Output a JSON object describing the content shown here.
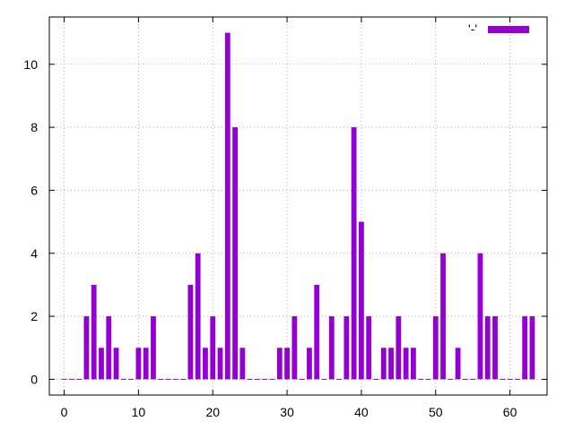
{
  "chart_data": {
    "type": "bar",
    "x": [
      0,
      1,
      2,
      3,
      4,
      5,
      6,
      7,
      8,
      9,
      10,
      11,
      12,
      13,
      14,
      15,
      16,
      17,
      18,
      19,
      20,
      21,
      22,
      23,
      24,
      25,
      26,
      27,
      28,
      29,
      30,
      31,
      32,
      33,
      34,
      35,
      36,
      37,
      38,
      39,
      40,
      41,
      42,
      43,
      44,
      45,
      46,
      47,
      48,
      49,
      50,
      51,
      52,
      53,
      54,
      55,
      56,
      57,
      58,
      59,
      60,
      61,
      62,
      63
    ],
    "series": [
      {
        "name": "'-'",
        "color": "#9400d3",
        "values": [
          0,
          0,
          0,
          2,
          3,
          1,
          2,
          1,
          0,
          0,
          1,
          1,
          2,
          0,
          0,
          0,
          0,
          3,
          4,
          1,
          2,
          1,
          11,
          8,
          1,
          0,
          0,
          0,
          0,
          1,
          1,
          2,
          0,
          1,
          3,
          0,
          2,
          0,
          2,
          8,
          5,
          2,
          0,
          1,
          1,
          2,
          1,
          1,
          0,
          0,
          2,
          4,
          0,
          1,
          0,
          0,
          4,
          2,
          2,
          0,
          0,
          0,
          2,
          2
        ]
      }
    ],
    "xlim": [
      -2,
      65
    ],
    "ylim": [
      -0.5,
      11.5
    ],
    "xticks": [
      0,
      10,
      20,
      30,
      40,
      50,
      60
    ],
    "yticks": [
      0,
      2,
      4,
      6,
      8,
      10
    ],
    "xtick_labels": [
      "0",
      "10",
      "20",
      "30",
      "40",
      "50",
      "60"
    ],
    "ytick_labels": [
      "0",
      "2",
      "4",
      "6",
      "8",
      "10"
    ],
    "grid": true,
    "legend": {
      "position": "top-right",
      "label": "'-'"
    },
    "title": "",
    "xlabel": "",
    "ylabel": ""
  }
}
